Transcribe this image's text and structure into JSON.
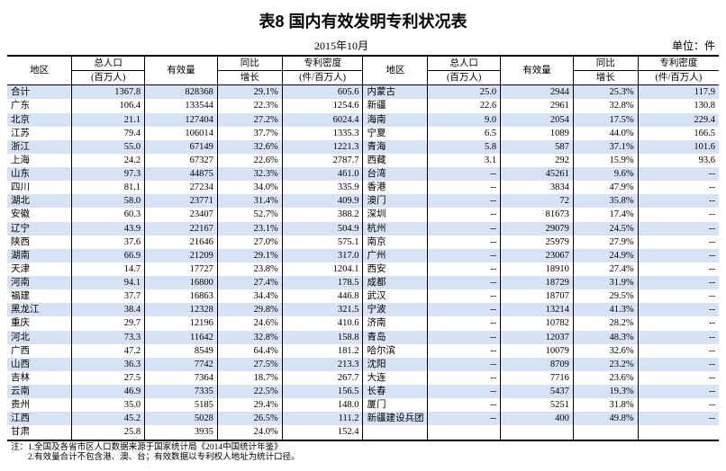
{
  "title": "表8  国内有效发明专利状况表",
  "date": "2015年10月",
  "unit_label": "单位：件",
  "headers": {
    "region": "地区",
    "population": "总人口",
    "population_sub": "(百万人)",
    "volume": "有效量",
    "growth": "同比",
    "growth_sub": "增长",
    "density": "专利密度",
    "density_sub": "(件/百万人)"
  },
  "columns": [
    "region",
    "population",
    "volume",
    "growth",
    "density"
  ],
  "rows_left": [
    [
      "合计",
      "1367.8",
      "828368",
      "29.1%",
      "605.6"
    ],
    [
      "广东",
      "106.4",
      "133544",
      "22.3%",
      "1254.6"
    ],
    [
      "北京",
      "21.1",
      "127404",
      "27.2%",
      "6024.4"
    ],
    [
      "江苏",
      "79.4",
      "106014",
      "37.7%",
      "1335.3"
    ],
    [
      "浙江",
      "55.0",
      "67149",
      "32.6%",
      "1221.3"
    ],
    [
      "上海",
      "24.2",
      "67327",
      "22.6%",
      "2787.7"
    ],
    [
      "山东",
      "97.3",
      "44875",
      "32.3%",
      "461.0"
    ],
    [
      "四川",
      "81.1",
      "27234",
      "34.0%",
      "335.9"
    ],
    [
      "湖北",
      "58.0",
      "23771",
      "31.4%",
      "409.9"
    ],
    [
      "安徽",
      "60.3",
      "23407",
      "52.7%",
      "388.2"
    ],
    [
      "辽宁",
      "43.9",
      "22167",
      "23.1%",
      "504.9"
    ],
    [
      "陕西",
      "37.6",
      "21646",
      "27.0%",
      "575.1"
    ],
    [
      "湖南",
      "66.9",
      "21209",
      "29.1%",
      "317.0"
    ],
    [
      "天津",
      "14.7",
      "17727",
      "23.8%",
      "1204.1"
    ],
    [
      "河南",
      "94.1",
      "16800",
      "27.4%",
      "178.5"
    ],
    [
      "福建",
      "37.7",
      "16863",
      "34.4%",
      "446.8"
    ],
    [
      "黑龙江",
      "38.4",
      "12328",
      "29.8%",
      "321.5"
    ],
    [
      "重庆",
      "29.7",
      "12196",
      "24.6%",
      "410.6"
    ],
    [
      "河北",
      "73.3",
      "11642",
      "32.8%",
      "158.8"
    ],
    [
      "广西",
      "47.2",
      "8549",
      "64.4%",
      "181.2"
    ],
    [
      "山西",
      "36.3",
      "7742",
      "27.5%",
      "213.3"
    ],
    [
      "吉林",
      "27.5",
      "7364",
      "18.7%",
      "267.7"
    ],
    [
      "云南",
      "46.9",
      "7335",
      "22.5%",
      "156.5"
    ],
    [
      "贵州",
      "35.0",
      "5185",
      "29.4%",
      "148.0"
    ],
    [
      "江西",
      "45.2",
      "5028",
      "26.5%",
      "111.2"
    ],
    [
      "甘肃",
      "25.8",
      "3935",
      "24.0%",
      "152.4"
    ]
  ],
  "rows_right": [
    [
      "内蒙古",
      "25.0",
      "2944",
      "25.3%",
      "117.9"
    ],
    [
      "新疆",
      "22.6",
      "2961",
      "32.8%",
      "130.8"
    ],
    [
      "海南",
      "9.0",
      "2054",
      "17.5%",
      "229.4"
    ],
    [
      "宁夏",
      "6.5",
      "1089",
      "44.0%",
      "166.5"
    ],
    [
      "青海",
      "5.8",
      "587",
      "37.1%",
      "101.6"
    ],
    [
      "西藏",
      "3.1",
      "292",
      "15.9%",
      "93.6"
    ],
    [
      "台湾",
      "--",
      "45261",
      "9.6%",
      "--"
    ],
    [
      "香港",
      "--",
      "3834",
      "47.9%",
      "--"
    ],
    [
      "澳门",
      "--",
      "72",
      "35.8%",
      "--"
    ],
    [
      "深圳",
      "--",
      "81673",
      "17.4%",
      "--"
    ],
    [
      "杭州",
      "--",
      "29079",
      "24.5%",
      "--"
    ],
    [
      "南京",
      "--",
      "25979",
      "27.9%",
      "--"
    ],
    [
      "广州",
      "--",
      "23067",
      "24.9%",
      "--"
    ],
    [
      "西安",
      "--",
      "18910",
      "27.4%",
      "--"
    ],
    [
      "成都",
      "--",
      "18729",
      "31.9%",
      "--"
    ],
    [
      "武汉",
      "--",
      "18707",
      "29.5%",
      "--"
    ],
    [
      "宁波",
      "--",
      "13214",
      "41.3%",
      "--"
    ],
    [
      "济南",
      "--",
      "10782",
      "28.2%",
      "--"
    ],
    [
      "青岛",
      "--",
      "12037",
      "48.3%",
      "--"
    ],
    [
      "哈尔滨",
      "--",
      "10079",
      "32.6%",
      "--"
    ],
    [
      "沈阳",
      "--",
      "8709",
      "23.2%",
      "--"
    ],
    [
      "大连",
      "--",
      "7716",
      "23.6%",
      "--"
    ],
    [
      "长春",
      "--",
      "5437",
      "19.3%",
      "--"
    ],
    [
      "厦门",
      "--",
      "5251",
      "31.8%",
      "--"
    ],
    [
      "新疆建设兵团",
      "--",
      "400",
      "49.8%",
      "--"
    ],
    [
      "",
      "",
      "",
      "",
      ""
    ]
  ],
  "footnotes": [
    "注：1.全国及各省市区人口数据来源于国家统计局《2014中国统计年鉴》",
    "        2.有效量合计不包含港、澳、台；有效数据以专利权人地址为统计口径。"
  ],
  "style": {
    "stripe_color": "#d7e3f4",
    "border_color": "#000000",
    "background": "#ffffff",
    "title_fontsize": 18,
    "body_fontsize": 10.5
  }
}
